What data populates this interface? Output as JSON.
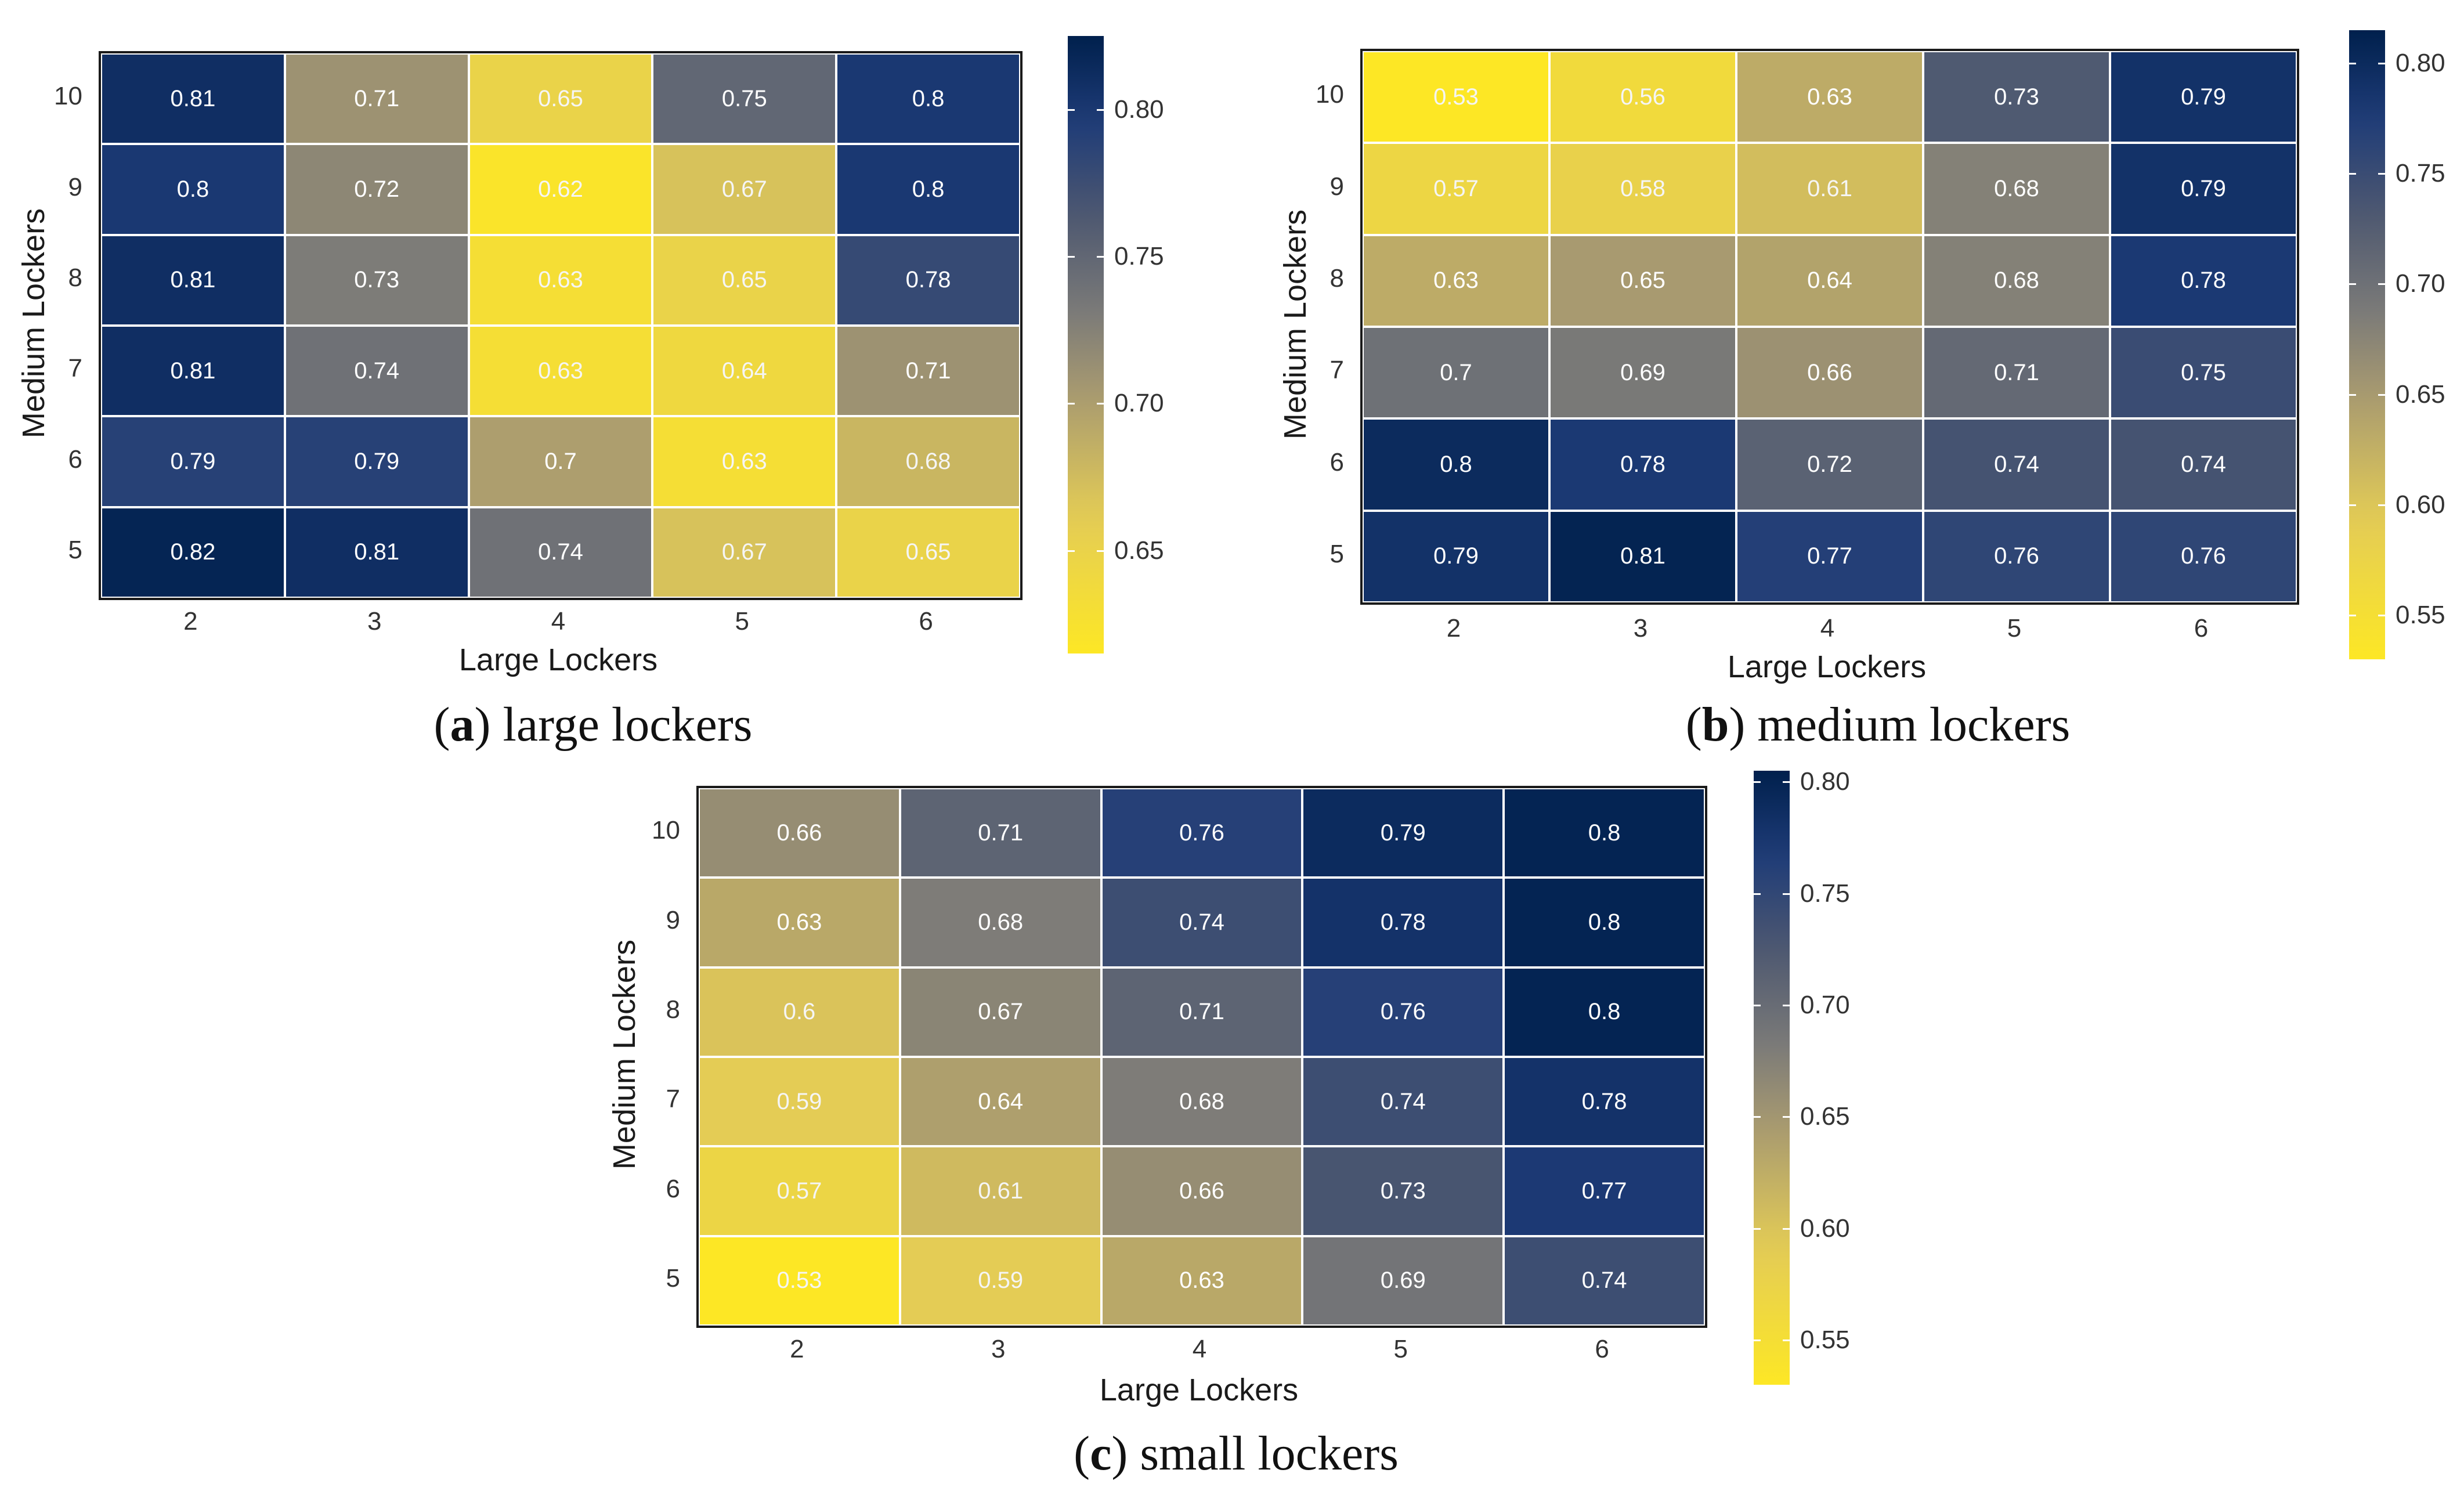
{
  "colors": {
    "low": "#FDE725",
    "mid": "#7C7B78",
    "high": "#00204D",
    "text_dark_cell": "#ffffff",
    "text_light_cell": "#f5f5f5"
  },
  "chart_data": [
    {
      "type": "heatmap",
      "id": "a",
      "title": "large lockers",
      "caption_letter": "a",
      "caption_text": "large lockers",
      "xlabel": "Large Lockers",
      "ylabel": "Medium Lockers",
      "x": [
        "2",
        "3",
        "4",
        "5",
        "6"
      ],
      "y": [
        "10",
        "9",
        "8",
        "7",
        "6",
        "5"
      ],
      "values": [
        [
          0.81,
          0.71,
          0.65,
          0.75,
          0.8
        ],
        [
          0.8,
          0.72,
          0.62,
          0.67,
          0.8
        ],
        [
          0.81,
          0.73,
          0.63,
          0.65,
          0.78
        ],
        [
          0.81,
          0.74,
          0.63,
          0.64,
          0.71
        ],
        [
          0.79,
          0.79,
          0.7,
          0.63,
          0.68
        ],
        [
          0.82,
          0.81,
          0.74,
          0.67,
          0.65
        ]
      ],
      "labels": [
        [
          "0.81",
          "0.71",
          "0.65",
          "0.75",
          "0.8"
        ],
        [
          "0.8",
          "0.72",
          "0.62",
          "0.67",
          "0.8"
        ],
        [
          "0.81",
          "0.73",
          "0.63",
          "0.65",
          "0.78"
        ],
        [
          "0.81",
          "0.74",
          "0.63",
          "0.64",
          "0.71"
        ],
        [
          "0.79",
          "0.79",
          "0.7",
          "0.63",
          "0.68"
        ],
        [
          "0.82",
          "0.81",
          "0.74",
          "0.67",
          "0.65"
        ]
      ],
      "colorbar": {
        "min": 0.615,
        "max": 0.825,
        "ticks": [
          "0.65",
          "0.70",
          "0.75",
          "0.80"
        ]
      }
    },
    {
      "type": "heatmap",
      "id": "b",
      "title": "medium lockers",
      "caption_letter": "b",
      "caption_text": "medium lockers",
      "xlabel": "Large Lockers",
      "ylabel": "Medium Lockers",
      "x": [
        "2",
        "3",
        "4",
        "5",
        "6"
      ],
      "y": [
        "10",
        "9",
        "8",
        "7",
        "6",
        "5"
      ],
      "values": [
        [
          0.53,
          0.56,
          0.63,
          0.73,
          0.79
        ],
        [
          0.57,
          0.58,
          0.61,
          0.68,
          0.79
        ],
        [
          0.63,
          0.65,
          0.64,
          0.68,
          0.78
        ],
        [
          0.7,
          0.69,
          0.66,
          0.71,
          0.75
        ],
        [
          0.8,
          0.78,
          0.72,
          0.74,
          0.74
        ],
        [
          0.79,
          0.81,
          0.77,
          0.76,
          0.76
        ]
      ],
      "labels": [
        [
          "0.53",
          "0.56",
          "0.63",
          "0.73",
          "0.79"
        ],
        [
          "0.57",
          "0.58",
          "0.61",
          "0.68",
          "0.79"
        ],
        [
          "0.63",
          "0.65",
          "0.64",
          "0.68",
          "0.78"
        ],
        [
          "0.7",
          "0.69",
          "0.66",
          "0.71",
          "0.75"
        ],
        [
          "0.8",
          "0.78",
          "0.72",
          "0.74",
          "0.74"
        ],
        [
          "0.79",
          "0.81",
          "0.77",
          "0.76",
          "0.76"
        ]
      ],
      "colorbar": {
        "min": 0.53,
        "max": 0.815,
        "ticks": [
          "0.55",
          "0.60",
          "0.65",
          "0.70",
          "0.75",
          "0.80"
        ]
      }
    },
    {
      "type": "heatmap",
      "id": "c",
      "title": "small lockers",
      "caption_letter": "c",
      "caption_text": "small lockers",
      "xlabel": "Large Lockers",
      "ylabel": "Medium Lockers",
      "x": [
        "2",
        "3",
        "4",
        "5",
        "6"
      ],
      "y": [
        "10",
        "9",
        "8",
        "7",
        "6",
        "5"
      ],
      "values": [
        [
          0.66,
          0.71,
          0.76,
          0.79,
          0.8
        ],
        [
          0.63,
          0.68,
          0.74,
          0.78,
          0.8
        ],
        [
          0.6,
          0.67,
          0.71,
          0.76,
          0.8
        ],
        [
          0.59,
          0.64,
          0.68,
          0.74,
          0.78
        ],
        [
          0.57,
          0.61,
          0.66,
          0.73,
          0.77
        ],
        [
          0.53,
          0.59,
          0.63,
          0.69,
          0.74
        ]
      ],
      "labels": [
        [
          "0.66",
          "0.71",
          "0.76",
          "0.79",
          "0.8"
        ],
        [
          "0.63",
          "0.68",
          "0.74",
          "0.78",
          "0.8"
        ],
        [
          "0.6",
          "0.67",
          "0.71",
          "0.76",
          "0.8"
        ],
        [
          "0.59",
          "0.64",
          "0.68",
          "0.74",
          "0.78"
        ],
        [
          "0.57",
          "0.61",
          "0.66",
          "0.73",
          "0.77"
        ],
        [
          "0.53",
          "0.59",
          "0.63",
          "0.69",
          "0.74"
        ]
      ],
      "colorbar": {
        "min": 0.53,
        "max": 0.805,
        "ticks": [
          "0.55",
          "0.60",
          "0.65",
          "0.70",
          "0.75",
          "0.80"
        ]
      }
    }
  ]
}
